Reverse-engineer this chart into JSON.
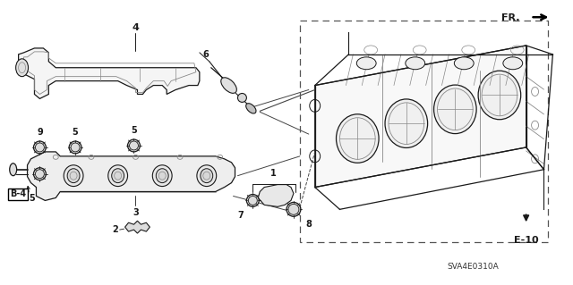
{
  "bg_color": "#ffffff",
  "line_color": "#1a1a1a",
  "gray": "#888888",
  "dark_gray": "#444444",
  "light_gray": "#cccccc",
  "diagram_code": "SVA4E0310A",
  "e10_label": "E-10",
  "b4_label": "B-4",
  "fr_label": "FR.",
  "figw": 6.4,
  "figh": 3.19,
  "dpi": 100
}
